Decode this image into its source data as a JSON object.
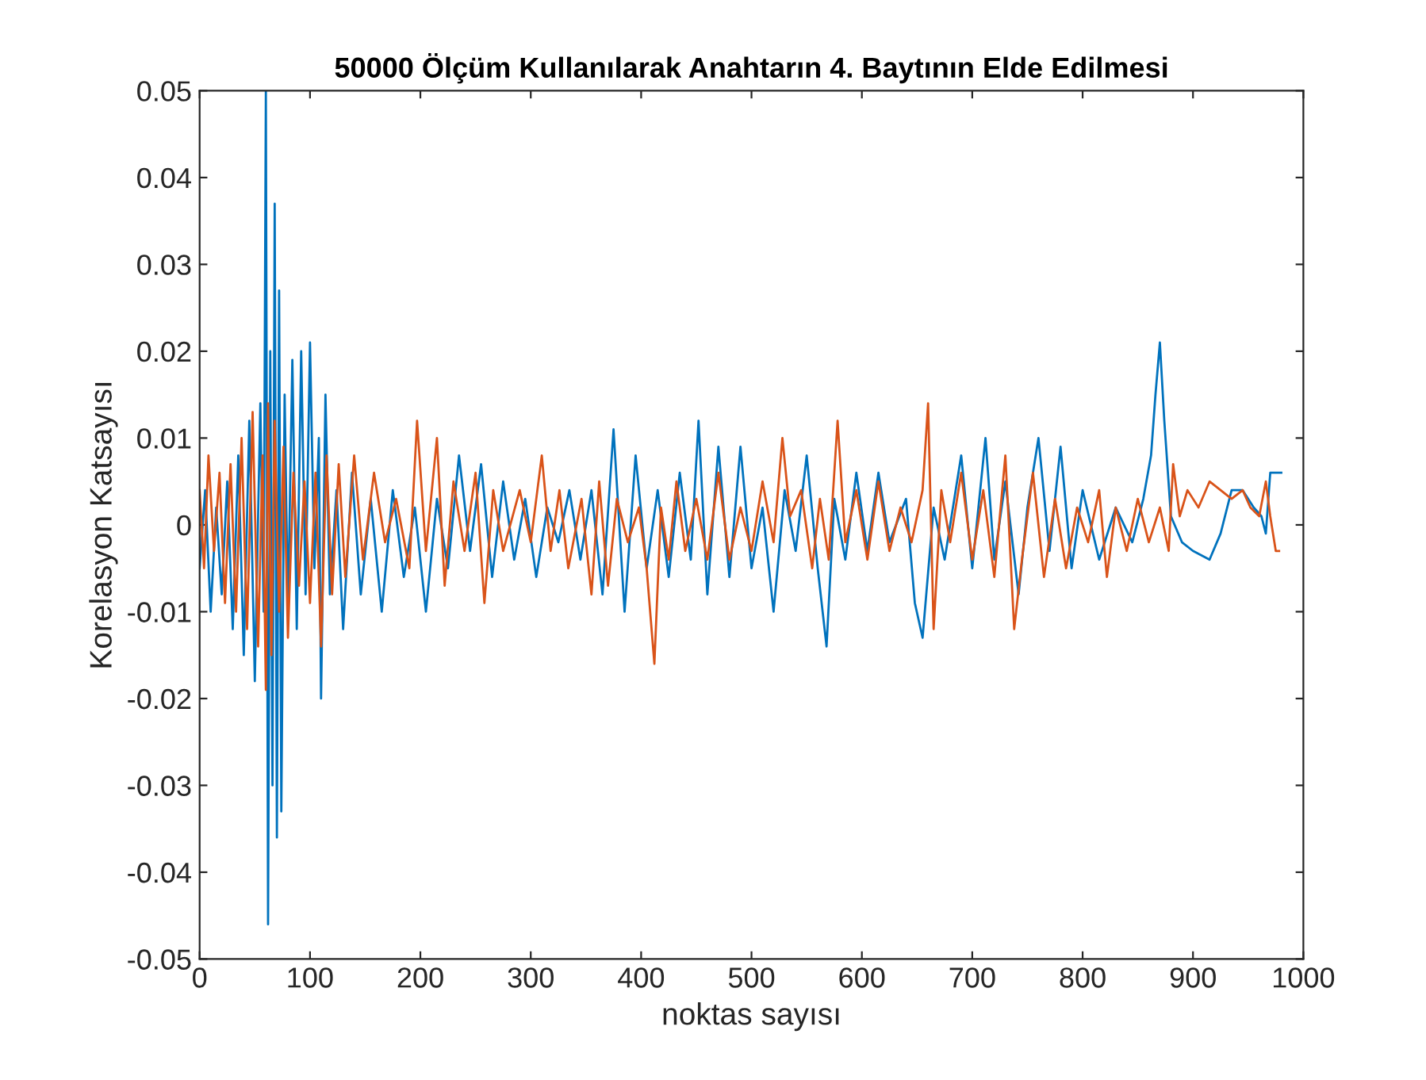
{
  "chart_data": {
    "type": "line",
    "title": "50000 Ölçüm Kullanılarak Anahtarın 4. Baytının Elde Edilmesi",
    "xlabel": "noktas sayısı",
    "ylabel": "Korelasyon Katsayısı",
    "xlim": [
      0,
      1000
    ],
    "ylim": [
      -0.05,
      0.05
    ],
    "xticks": [
      0,
      100,
      200,
      300,
      400,
      500,
      600,
      700,
      800,
      900,
      1000
    ],
    "yticks": [
      -0.05,
      -0.04,
      -0.03,
      -0.02,
      -0.01,
      0,
      0.01,
      0.02,
      0.03,
      0.04,
      0.05
    ],
    "grid": false,
    "marker": "none",
    "line_style": "solid",
    "series": [
      {
        "color": "#0072bd",
        "x": [
          0,
          5,
          10,
          15,
          20,
          25,
          30,
          35,
          40,
          45,
          50,
          55,
          58,
          60,
          62,
          64,
          66,
          68,
          70,
          72,
          74,
          77,
          80,
          84,
          88,
          92,
          96,
          100,
          104,
          108,
          110,
          114,
          118,
          124,
          130,
          138,
          146,
          155,
          165,
          175,
          185,
          195,
          205,
          215,
          225,
          235,
          245,
          255,
          265,
          275,
          285,
          295,
          305,
          315,
          325,
          335,
          345,
          355,
          365,
          375,
          385,
          395,
          405,
          415,
          425,
          435,
          445,
          452,
          460,
          470,
          480,
          490,
          500,
          510,
          520,
          530,
          540,
          550,
          560,
          568,
          575,
          585,
          595,
          605,
          615,
          625,
          640,
          648,
          655,
          665,
          675,
          690,
          700,
          712,
          720,
          730,
          742,
          750,
          760,
          770,
          780,
          790,
          800,
          815,
          830,
          845,
          855,
          862,
          866,
          870,
          874,
          880,
          890,
          900,
          915,
          925,
          935,
          945,
          955,
          962,
          966,
          970,
          980
        ],
        "values": [
          -0.005,
          0.004,
          -0.01,
          0.002,
          -0.008,
          0.005,
          -0.012,
          0.008,
          -0.015,
          0.012,
          -0.018,
          0.014,
          -0.01,
          0.05,
          -0.046,
          0.02,
          -0.03,
          0.037,
          -0.036,
          0.027,
          -0.033,
          0.015,
          -0.01,
          0.019,
          -0.012,
          0.02,
          -0.008,
          0.021,
          -0.005,
          0.01,
          -0.02,
          0.015,
          -0.008,
          0.004,
          -0.012,
          0.006,
          -0.008,
          0.003,
          -0.01,
          0.004,
          -0.006,
          0.002,
          -0.01,
          0.003,
          -0.005,
          0.008,
          -0.003,
          0.007,
          -0.006,
          0.005,
          -0.004,
          0.003,
          -0.006,
          0.002,
          -0.002,
          0.004,
          -0.004,
          0.004,
          -0.008,
          0.011,
          -0.01,
          0.008,
          -0.005,
          0.004,
          -0.006,
          0.006,
          -0.004,
          0.012,
          -0.008,
          0.009,
          -0.006,
          0.009,
          -0.005,
          0.002,
          -0.01,
          0.004,
          -0.003,
          0.008,
          -0.005,
          -0.014,
          0.003,
          -0.004,
          0.006,
          -0.003,
          0.006,
          -0.002,
          0.003,
          -0.009,
          -0.013,
          0.002,
          -0.004,
          0.008,
          -0.005,
          0.01,
          -0.004,
          0.005,
          -0.008,
          0.002,
          0.01,
          -0.003,
          0.009,
          -0.005,
          0.004,
          -0.004,
          0.002,
          -0.002,
          0.003,
          0.008,
          0.015,
          0.021,
          0.012,
          0.001,
          -0.002,
          -0.003,
          -0.004,
          -0.001,
          0.004,
          0.004,
          0.002,
          0.001,
          -0.001,
          0.006,
          0.006
        ]
      },
      {
        "color": "#d95319",
        "x": [
          0,
          4,
          8,
          13,
          18,
          23,
          28,
          33,
          38,
          43,
          48,
          53,
          57,
          60,
          62,
          65,
          68,
          72,
          76,
          80,
          85,
          90,
          95,
          100,
          105,
          110,
          115,
          120,
          126,
          132,
          140,
          148,
          158,
          168,
          178,
          190,
          197,
          205,
          215,
          222,
          230,
          240,
          250,
          258,
          266,
          275,
          290,
          300,
          310,
          318,
          326,
          334,
          346,
          355,
          362,
          370,
          378,
          388,
          398,
          405,
          412,
          418,
          425,
          432,
          440,
          450,
          460,
          470,
          480,
          490,
          500,
          510,
          520,
          528,
          535,
          545,
          555,
          562,
          570,
          578,
          585,
          595,
          605,
          615,
          625,
          635,
          645,
          655,
          660,
          665,
          672,
          680,
          690,
          700,
          710,
          720,
          730,
          738,
          745,
          755,
          765,
          775,
          785,
          795,
          805,
          815,
          822,
          830,
          840,
          850,
          860,
          870,
          878,
          882,
          888,
          895,
          905,
          915,
          925,
          935,
          945,
          952,
          960,
          966,
          970,
          975,
          978
        ],
        "values": [
          0.004,
          -0.005,
          0.008,
          -0.003,
          0.006,
          -0.009,
          0.007,
          -0.01,
          0.01,
          -0.012,
          0.013,
          -0.014,
          0.008,
          -0.019,
          0.014,
          -0.015,
          0.012,
          -0.01,
          0.009,
          -0.013,
          0.006,
          -0.007,
          0.005,
          -0.009,
          0.006,
          -0.014,
          0.008,
          -0.008,
          0.007,
          -0.006,
          0.008,
          -0.004,
          0.006,
          -0.002,
          0.003,
          -0.005,
          0.012,
          -0.003,
          0.01,
          -0.007,
          0.005,
          -0.003,
          0.006,
          -0.009,
          0.004,
          -0.003,
          0.004,
          -0.002,
          0.008,
          -0.003,
          0.004,
          -0.005,
          0.003,
          -0.008,
          0.005,
          -0.007,
          0.003,
          -0.002,
          0.002,
          -0.005,
          -0.016,
          0.002,
          -0.004,
          0.005,
          -0.003,
          0.003,
          -0.004,
          0.006,
          -0.004,
          0.002,
          -0.003,
          0.005,
          -0.002,
          0.01,
          0.001,
          0.004,
          -0.005,
          0.003,
          -0.004,
          0.012,
          -0.002,
          0.004,
          -0.004,
          0.005,
          -0.003,
          0.002,
          -0.002,
          0.004,
          0.014,
          -0.012,
          0.004,
          -0.002,
          0.006,
          -0.004,
          0.004,
          -0.006,
          0.008,
          -0.012,
          -0.004,
          0.006,
          -0.006,
          0.003,
          -0.005,
          0.002,
          -0.002,
          0.004,
          -0.006,
          0.002,
          -0.003,
          0.003,
          -0.002,
          0.002,
          -0.003,
          0.007,
          0.001,
          0.004,
          0.002,
          0.005,
          0.004,
          0.003,
          0.004,
          0.002,
          0.001,
          0.005,
          0.001,
          -0.003,
          -0.003
        ]
      }
    ]
  }
}
